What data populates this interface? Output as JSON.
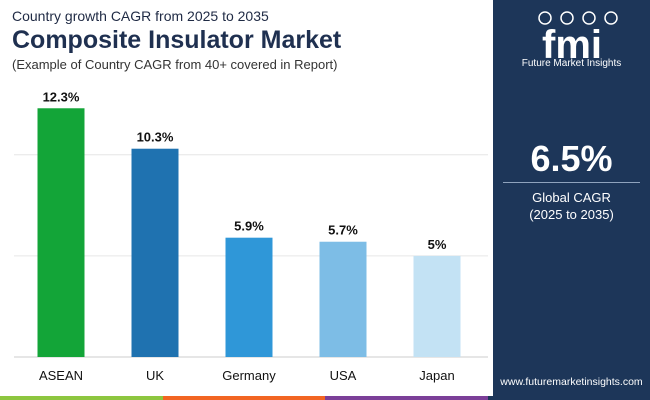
{
  "header": {
    "subtitle": "Country growth CAGR from 2025 to 2035",
    "title": "Composite Insulator Market",
    "note": "(Example of Country CAGR from 40+ covered in Report)"
  },
  "chart_data": {
    "type": "bar",
    "categories": [
      "ASEAN",
      "UK",
      "Germany",
      "USA",
      "Japan"
    ],
    "values": [
      12.3,
      10.3,
      5.9,
      5.7,
      5
    ],
    "value_labels": [
      "12.3%",
      "10.3%",
      "5.9%",
      "5.7%",
      "5%"
    ],
    "colors": [
      "#13a538",
      "#1f72b0",
      "#2f97d8",
      "#7dbde6",
      "#c3e2f4"
    ],
    "ylim": [
      0,
      13.5
    ],
    "gridlines": [
      0,
      5,
      10
    ],
    "xlabel": "",
    "ylabel": "",
    "grid": true
  },
  "sidebar": {
    "logo_text": "fmi",
    "logo_subtext": "Future Market Insights",
    "cagr_value": "6.5%",
    "cagr_label": "Global CAGR",
    "cagr_period": "(2025 to 2035)",
    "website": "www.futuremarketinsights.com"
  },
  "bottom_strip_colors": [
    "#8dc63f",
    "#f26522",
    "#7b3f98",
    "#1d3659"
  ]
}
